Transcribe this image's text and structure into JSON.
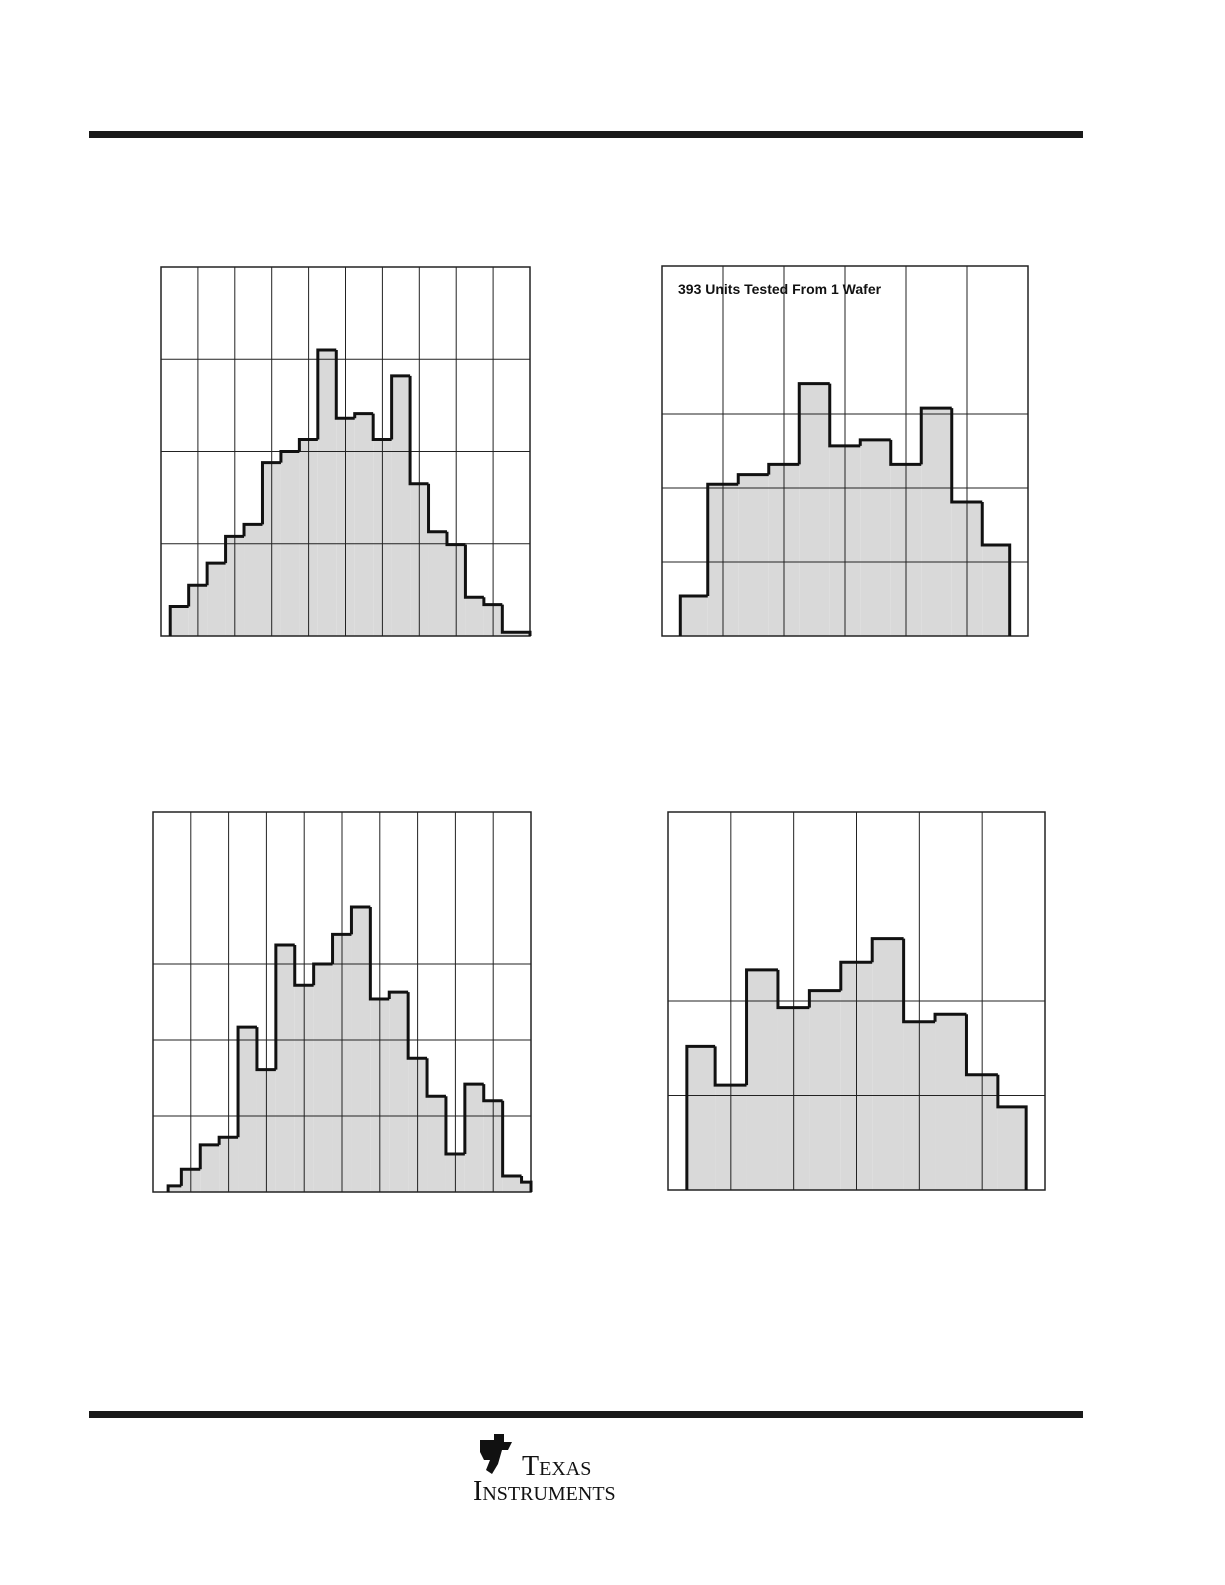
{
  "chart_data": [
    {
      "type": "histogram",
      "color": "#d9d9d9",
      "grid": true,
      "bins": [
        0.25,
        0.75,
        1.25,
        1.75,
        2.25,
        2.75,
        3.25,
        3.75,
        4.25,
        4.75,
        5.25,
        5.75,
        6.25,
        6.75,
        7.25,
        7.75,
        8.25,
        8.75,
        9.25,
        10
      ],
      "values": [
        0.32,
        0.55,
        0.79,
        1.08,
        1.21,
        1.88,
        2.0,
        2.13,
        3.1,
        2.36,
        2.41,
        2.13,
        2.82,
        1.65,
        1.13,
        0.99,
        0.42,
        0.34,
        0.04
      ],
      "xlim": [
        0,
        10
      ],
      "xticks": [
        1,
        2,
        3,
        4,
        5,
        6,
        7,
        8,
        9
      ],
      "ylim": [
        0,
        4
      ],
      "yticks": [
        1,
        2,
        3
      ]
    },
    {
      "type": "histogram",
      "color": "#d9d9d9",
      "grid": true,
      "annotation": "393 Units Tested From 1 Wafer",
      "bins": [
        0.3,
        0.75,
        1.25,
        1.75,
        2.25,
        2.75,
        3.25,
        3.75,
        4.25,
        4.75,
        5.25,
        5.7
      ],
      "values": [
        0.54,
        2.05,
        2.18,
        2.32,
        3.41,
        2.57,
        2.65,
        2.32,
        3.08,
        1.81,
        1.23
      ],
      "xlim": [
        0,
        6
      ],
      "xticks": [
        1,
        2,
        3,
        4,
        5
      ],
      "ylim": [
        0,
        5
      ],
      "yticks": [
        1,
        2,
        3
      ]
    },
    {
      "type": "histogram",
      "color": "#d9d9d9",
      "grid": true,
      "bins": [
        0.4,
        0.75,
        1.25,
        1.75,
        2.25,
        2.75,
        3.25,
        3.75,
        4.25,
        4.75,
        5.25,
        5.75,
        6.25,
        6.75,
        7.25,
        7.75,
        8.25,
        8.75,
        9.25,
        9.75,
        10
      ],
      "values": [
        0.08,
        0.3,
        0.62,
        0.72,
        2.17,
        1.61,
        3.25,
        2.72,
        3.0,
        3.39,
        3.75,
        2.54,
        2.63,
        1.76,
        1.26,
        0.5,
        1.42,
        1.2,
        0.21,
        0.13
      ],
      "xlim": [
        0,
        10
      ],
      "xticks": [
        1,
        2,
        3,
        4,
        5,
        6,
        7,
        8,
        9
      ],
      "ylim": [
        0,
        5
      ],
      "yticks": [
        1,
        2,
        3
      ]
    },
    {
      "type": "histogram",
      "color": "#d9d9d9",
      "grid": true,
      "bins": [
        0.3,
        0.75,
        1.25,
        1.75,
        2.25,
        2.75,
        3.25,
        3.75,
        4.25,
        4.75,
        5.25,
        5.7
      ],
      "values": [
        1.52,
        1.11,
        2.33,
        1.93,
        2.11,
        2.41,
        2.66,
        1.78,
        1.86,
        1.22,
        0.88
      ],
      "xlim": [
        0,
        6
      ],
      "xticks": [
        1,
        2,
        3,
        4,
        5
      ],
      "ylim": [
        0,
        4
      ],
      "yticks": [
        1,
        2
      ]
    }
  ],
  "footer": {
    "logo_line1": "Texas",
    "logo_line2": "Instruments"
  }
}
